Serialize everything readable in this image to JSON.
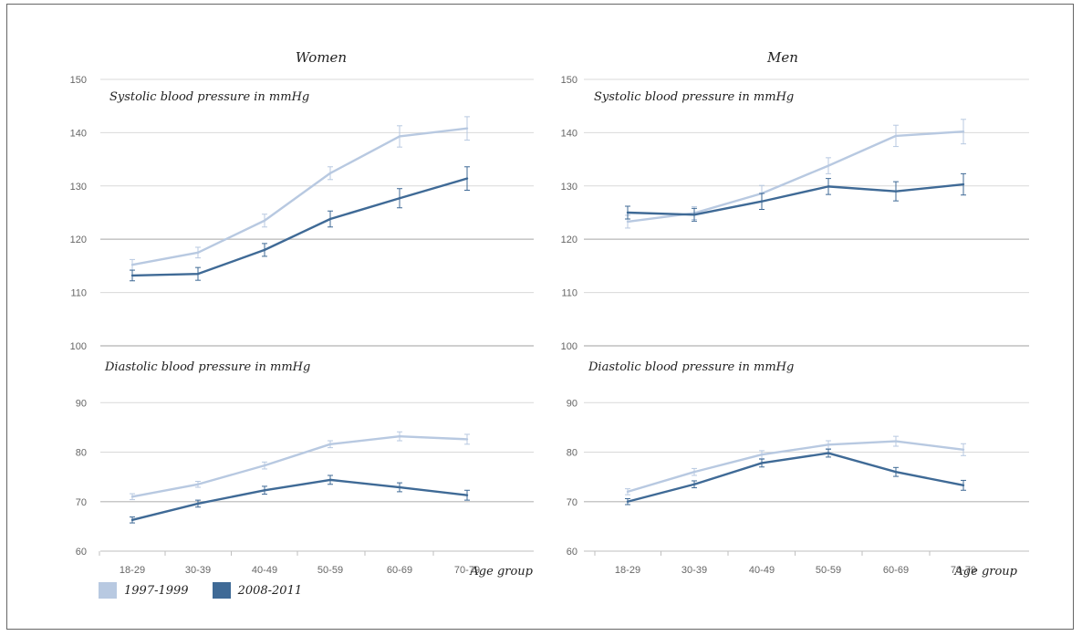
{
  "chart_data": [
    {
      "type": "line",
      "title": "Women",
      "subtitle": "Systolic blood pressure in mmHg",
      "categories": [
        "18-29",
        "30-39",
        "40-49",
        "50-59",
        "60-69",
        "70-79"
      ],
      "ylim": [
        100,
        150
      ],
      "yticks": [
        "150",
        "140",
        "130",
        "120",
        "110",
        "100"
      ],
      "series": [
        {
          "name": "1997-1999",
          "values": [
            115.2,
            117.5,
            123.5,
            132.4,
            139.3,
            140.8
          ],
          "err": [
            1.0,
            1.0,
            1.2,
            1.2,
            2.0,
            2.2
          ]
        },
        {
          "name": "2008-2011",
          "values": [
            113.2,
            113.5,
            118.0,
            123.8,
            127.7,
            131.4
          ],
          "err": [
            1.0,
            1.2,
            1.2,
            1.5,
            1.8,
            2.2
          ]
        }
      ]
    },
    {
      "type": "line",
      "title": "Men",
      "subtitle": "Systolic blood pressure in mmHg",
      "categories": [
        "18-29",
        "30-39",
        "40-49",
        "50-59",
        "60-69",
        "70-79"
      ],
      "ylim": [
        100,
        150
      ],
      "yticks": [
        "150",
        "140",
        "130",
        "120",
        "110",
        "100"
      ],
      "series": [
        {
          "name": "1997-1999",
          "values": [
            123.3,
            124.9,
            128.6,
            133.8,
            139.4,
            140.2
          ],
          "err": [
            1.2,
            1.2,
            1.5,
            1.5,
            2.0,
            2.3
          ]
        },
        {
          "name": "2008-2011",
          "values": [
            125.0,
            124.6,
            127.1,
            129.9,
            129.0,
            130.3
          ],
          "err": [
            1.2,
            1.2,
            1.5,
            1.5,
            1.8,
            2.0
          ]
        }
      ]
    },
    {
      "type": "line",
      "subtitle": "Diastolic blood pressure in mmHg",
      "categories": [
        "18-29",
        "30-39",
        "40-49",
        "50-59",
        "60-69",
        "70-79"
      ],
      "ylim": [
        60,
        100
      ],
      "yticks": [
        "90",
        "80",
        "70",
        "60"
      ],
      "series": [
        {
          "name": "1997-1999",
          "values": [
            71.0,
            73.5,
            77.3,
            81.6,
            83.2,
            82.6
          ],
          "err": [
            0.6,
            0.6,
            0.7,
            0.7,
            0.9,
            1.0
          ]
        },
        {
          "name": "2008-2011",
          "values": [
            66.3,
            69.6,
            72.3,
            74.4,
            72.9,
            71.3
          ],
          "err": [
            0.6,
            0.7,
            0.8,
            0.9,
            0.9,
            1.0
          ]
        }
      ]
    },
    {
      "type": "line",
      "subtitle": "Diastolic blood pressure in mmHg",
      "categories": [
        "18-29",
        "30-39",
        "40-49",
        "50-59",
        "60-69",
        "70-79"
      ],
      "ylim": [
        60,
        100
      ],
      "yticks": [
        "90",
        "80",
        "70",
        "60"
      ],
      "series": [
        {
          "name": "1997-1999",
          "values": [
            72.0,
            76.0,
            79.5,
            81.5,
            82.2,
            80.5
          ],
          "err": [
            0.6,
            0.7,
            0.8,
            0.8,
            1.0,
            1.2
          ]
        },
        {
          "name": "2008-2011",
          "values": [
            70.0,
            73.5,
            77.8,
            79.8,
            76.0,
            73.3
          ],
          "err": [
            0.6,
            0.7,
            0.8,
            0.8,
            0.9,
            1.0
          ]
        }
      ]
    }
  ],
  "xlabel": "Age group",
  "legend": [
    {
      "label": "1997-1999",
      "color": "#b8c9e1"
    },
    {
      "label": "2008-2011",
      "color": "#3f6a96"
    }
  ],
  "colors": {
    "series1": "#b8c9e1",
    "series2": "#3f6a96",
    "grid": "#d9d9d9",
    "axis": "#bfbfbf"
  }
}
